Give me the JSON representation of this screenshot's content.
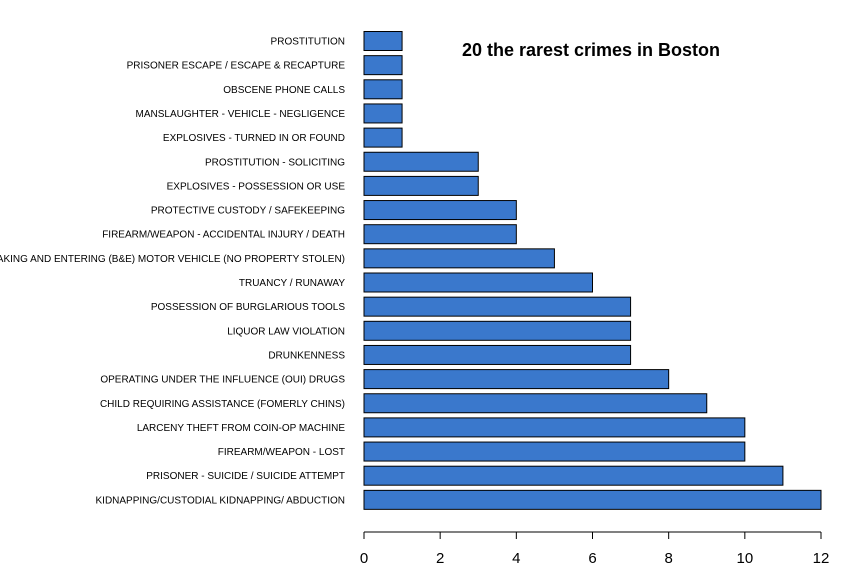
{
  "chart_data": {
    "type": "bar",
    "orientation": "horizontal",
    "title": "20 the rarest crimes in Boston",
    "xlabel": "",
    "ylabel": "",
    "xlim": [
      0,
      12
    ],
    "x_ticks": [
      0,
      2,
      4,
      6,
      8,
      10,
      12
    ],
    "grid": false,
    "categories": [
      "PROSTITUTION",
      "PRISONER ESCAPE / ESCAPE & RECAPTURE",
      "OBSCENE PHONE CALLS",
      "MANSLAUGHTER - VEHICLE - NEGLIGENCE",
      "EXPLOSIVES - TURNED IN OR FOUND",
      "PROSTITUTION - SOLICITING",
      "EXPLOSIVES - POSSESSION OR USE",
      "PROTECTIVE CUSTODY / SAFEKEEPING",
      "FIREARM/WEAPON - ACCIDENTAL INJURY / DEATH",
      "BREAKING AND ENTERING (B&E) MOTOR VEHICLE (NO PROPERTY STOLEN)",
      "TRUANCY / RUNAWAY",
      "POSSESSION OF BURGLARIOUS TOOLS",
      "LIQUOR LAW VIOLATION",
      "DRUNKENNESS",
      "OPERATING UNDER THE INFLUENCE (OUI) DRUGS",
      "CHILD REQUIRING ASSISTANCE (FOMERLY CHINS)",
      "LARCENY THEFT FROM COIN-OP MACHINE",
      "FIREARM/WEAPON - LOST",
      "PRISONER - SUICIDE / SUICIDE ATTEMPT",
      "KIDNAPPING/CUSTODIAL KIDNAPPING/ ABDUCTION"
    ],
    "values": [
      1,
      1,
      1,
      1,
      1,
      3,
      3,
      4,
      4,
      5,
      6,
      7,
      7,
      7,
      8,
      9,
      10,
      10,
      11,
      12
    ],
    "bar_color": "#3a78cc",
    "bar_edge_color": "#000000"
  }
}
